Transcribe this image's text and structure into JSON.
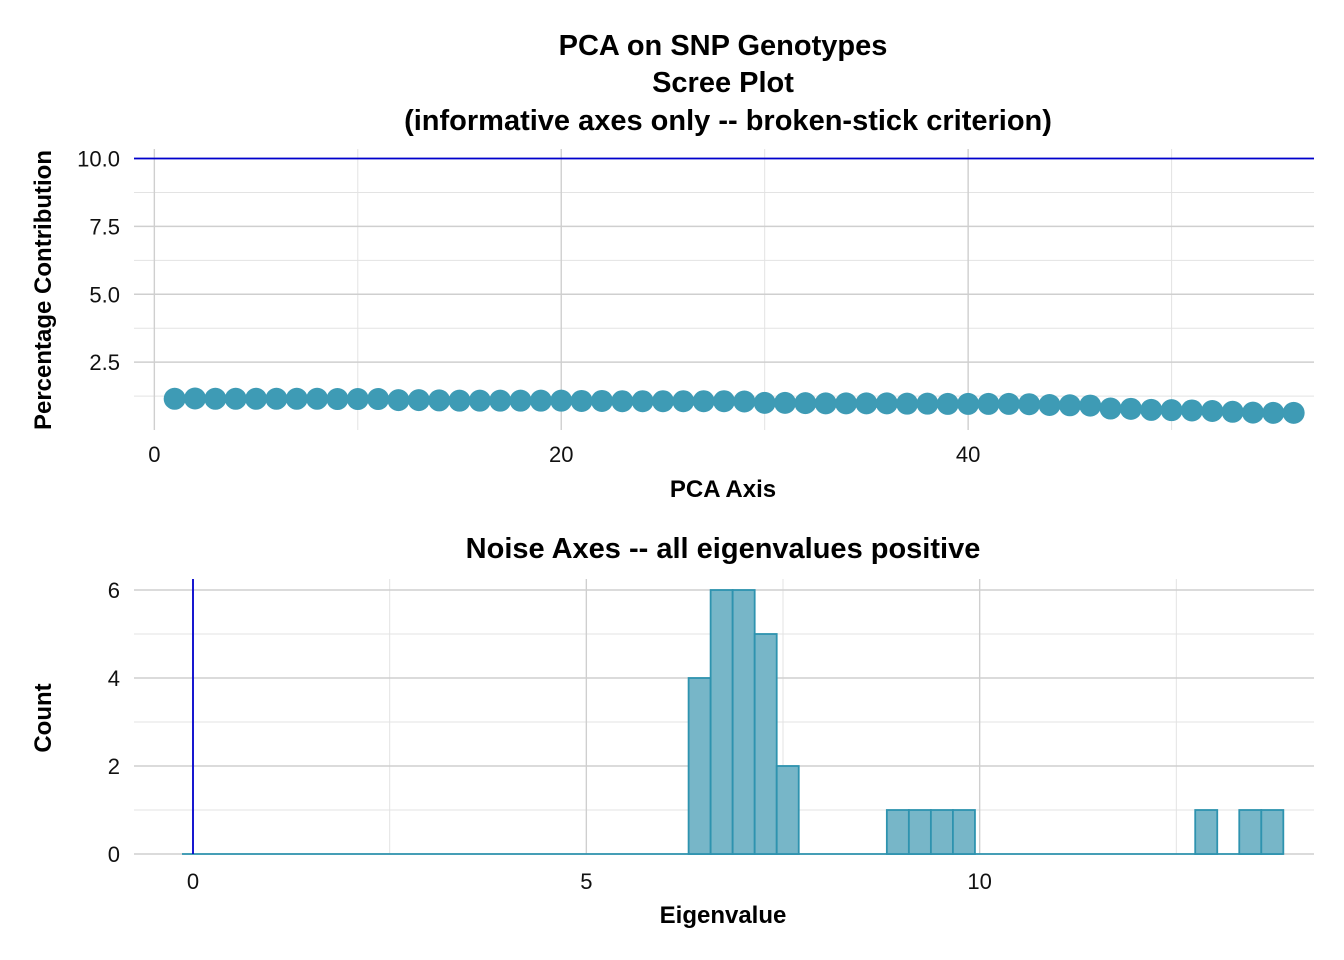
{
  "chart_data": [
    {
      "type": "scatter",
      "title_lines": [
        "PCA on SNP Genotypes",
        "Scree Plot",
        "(informative axes only -- broken-stick criterion)"
      ],
      "xlabel": "PCA Axis",
      "ylabel": "Percentage Contribution",
      "xlim": [
        -1,
        57
      ],
      "ylim": [
        0,
        10.35
      ],
      "x_ticks": [
        0,
        20,
        40
      ],
      "x_tick_labels": [
        "0",
        "20",
        "40"
      ],
      "y_ticks": [
        2.5,
        5.0,
        7.5,
        10.0
      ],
      "y_tick_labels": [
        "2.5",
        "5.0",
        "7.5",
        "10.0"
      ],
      "hline": 10.0,
      "x": [
        1,
        2,
        3,
        4,
        5,
        6,
        7,
        8,
        9,
        10,
        11,
        12,
        13,
        14,
        15,
        16,
        17,
        18,
        19,
        20,
        21,
        22,
        23,
        24,
        25,
        26,
        27,
        28,
        29,
        30,
        31,
        32,
        33,
        34,
        35,
        36,
        37,
        38,
        39,
        40,
        41,
        42,
        43,
        44,
        45,
        46,
        47,
        48,
        49,
        50,
        51,
        52,
        53,
        54,
        55,
        56
      ],
      "values": [
        1.15,
        1.16,
        1.15,
        1.15,
        1.15,
        1.15,
        1.15,
        1.15,
        1.14,
        1.14,
        1.14,
        1.1,
        1.1,
        1.09,
        1.08,
        1.08,
        1.08,
        1.08,
        1.08,
        1.08,
        1.07,
        1.07,
        1.06,
        1.06,
        1.06,
        1.06,
        1.06,
        1.06,
        1.05,
        1.0,
        1.0,
        0.99,
        0.98,
        0.98,
        0.98,
        0.98,
        0.97,
        0.97,
        0.96,
        0.96,
        0.96,
        0.96,
        0.95,
        0.92,
        0.91,
        0.9,
        0.79,
        0.78,
        0.74,
        0.73,
        0.72,
        0.7,
        0.67,
        0.64,
        0.63,
        0.63
      ],
      "point_color": "#3E9BB5",
      "hline_color": "#0000CD",
      "grid": true
    },
    {
      "type": "histogram",
      "title": "Noise Axes -- all eigenvalues positive",
      "xlabel": "Eigenvalue",
      "ylabel": "Count",
      "xlim": [
        -0.75,
        14.25
      ],
      "ylim": [
        0,
        6.25
      ],
      "x_ticks": [
        0,
        5,
        10
      ],
      "x_tick_labels": [
        "0",
        "5",
        "10"
      ],
      "y_ticks": [
        0,
        2,
        4,
        6
      ],
      "y_tick_labels": [
        "0",
        "2",
        "4",
        "6"
      ],
      "vline": 0,
      "bin_width": 0.28,
      "bin_start": -0.14,
      "counts": [
        0,
        0,
        0,
        0,
        0,
        0,
        0,
        0,
        0,
        0,
        0,
        0,
        0,
        0,
        0,
        0,
        0,
        0,
        0,
        0,
        0,
        0,
        0,
        4,
        6,
        6,
        5,
        2,
        0,
        0,
        0,
        0,
        1,
        1,
        1,
        1,
        0,
        0,
        0,
        0,
        0,
        0,
        0,
        0,
        0,
        0,
        1,
        0,
        1,
        1
      ],
      "bar_fill": "#77B6C8",
      "bar_stroke": "#2E93AF",
      "vline_color": "#0000CD",
      "grid": true
    }
  ]
}
